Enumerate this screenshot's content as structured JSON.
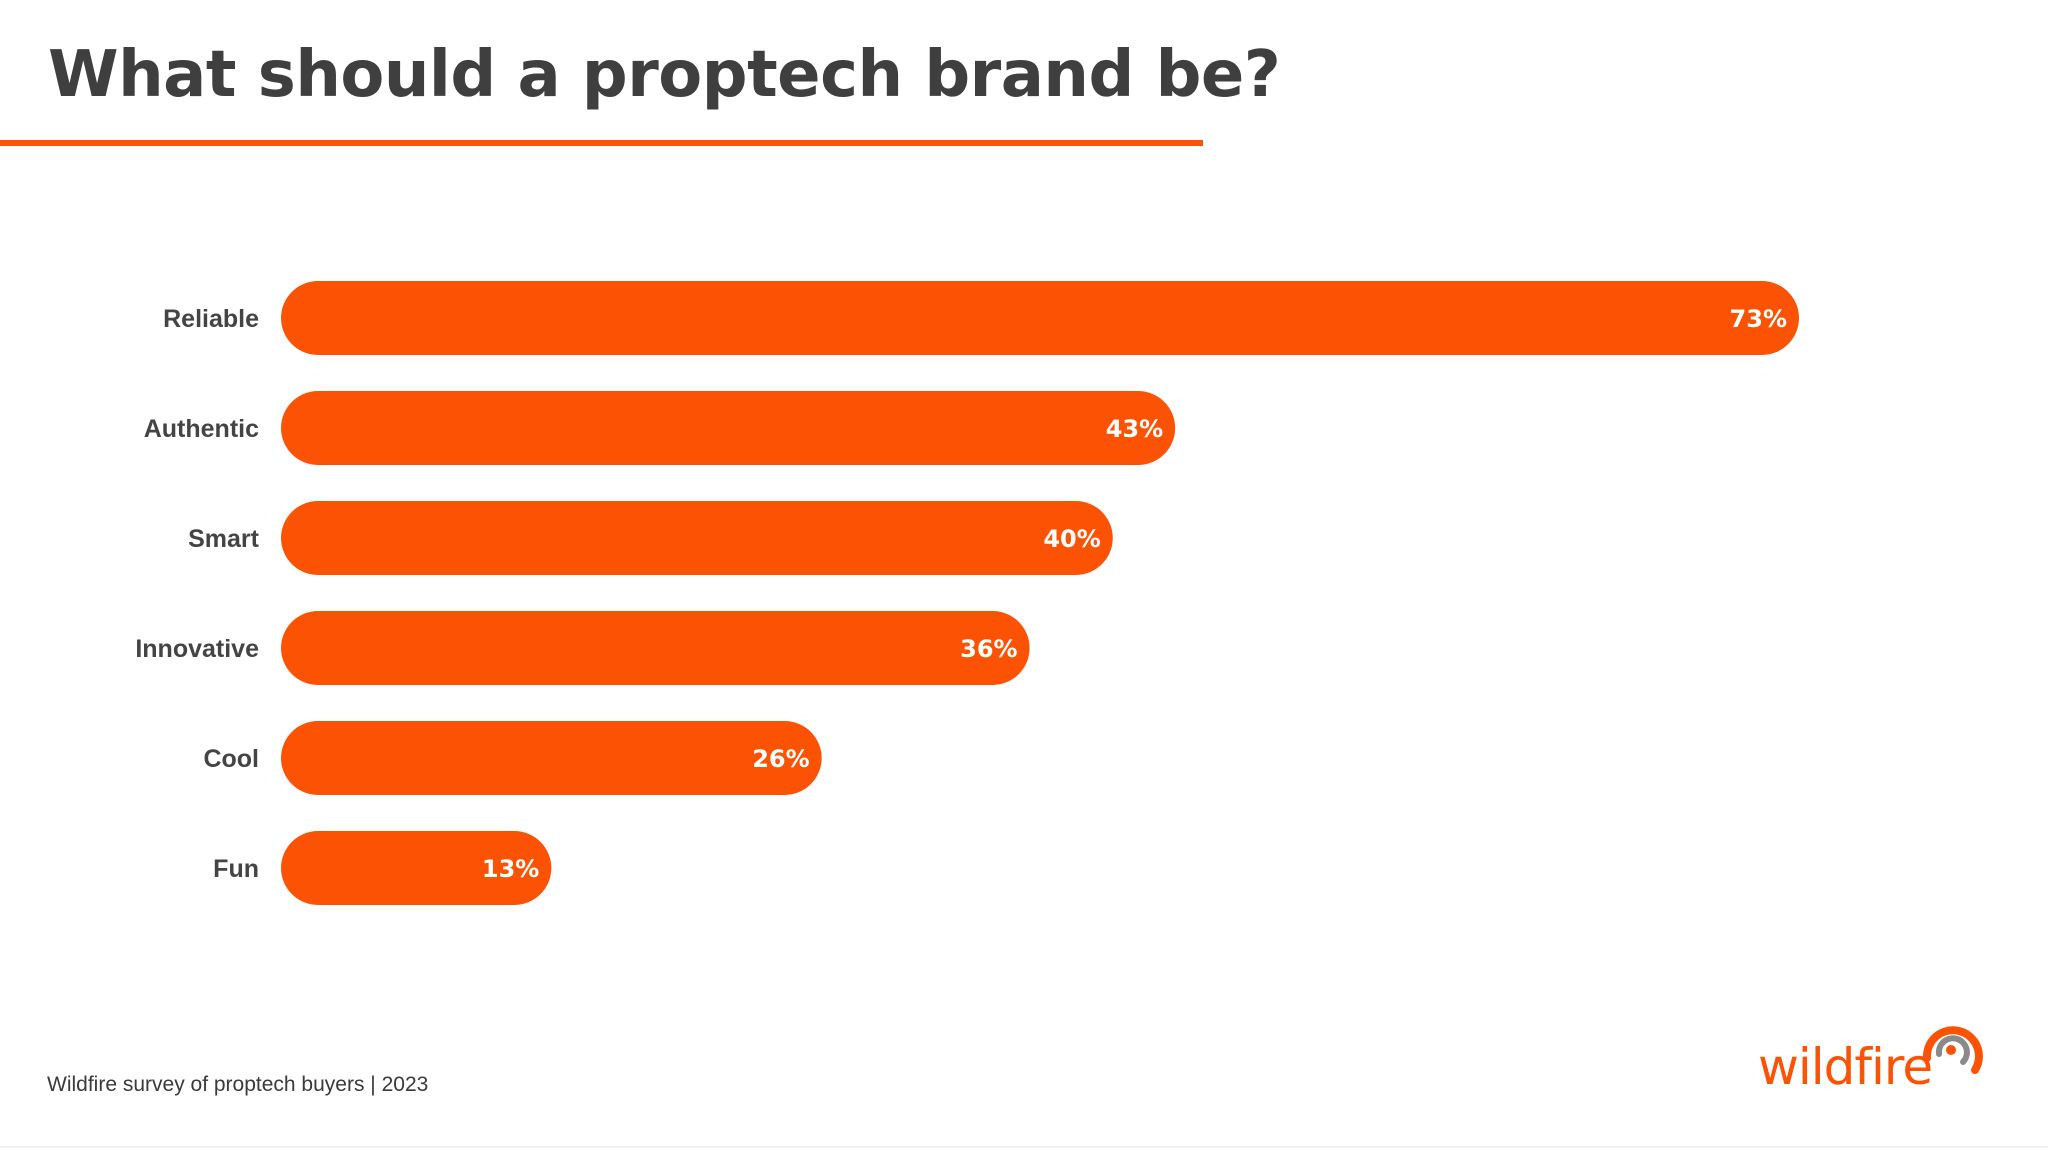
{
  "title": "What should a proptech brand be?",
  "footer": {
    "source": "Wildfire survey of proptech buyers | 2023"
  },
  "logo": {
    "text": "wildfire",
    "icon": "wildfire-swirl-icon"
  },
  "colors": {
    "accent": "#fc5203",
    "title_text": "#3f3f3f",
    "category_text": "#444444",
    "value_text": "#ffffff",
    "logo_gray": "#8a8a8a"
  },
  "chart_data": {
    "type": "bar",
    "orientation": "horizontal",
    "title": "What should a proptech brand be?",
    "categories": [
      "Reliable",
      "Authentic",
      "Smart",
      "Innovative",
      "Cool",
      "Fun"
    ],
    "values": [
      73,
      43,
      40,
      36,
      26,
      13
    ],
    "value_labels": [
      "73%",
      "43%",
      "40%",
      "36%",
      "26%",
      "13%"
    ],
    "unit": "%",
    "xlim": [
      0,
      73
    ],
    "grid": false,
    "legend": "none"
  }
}
